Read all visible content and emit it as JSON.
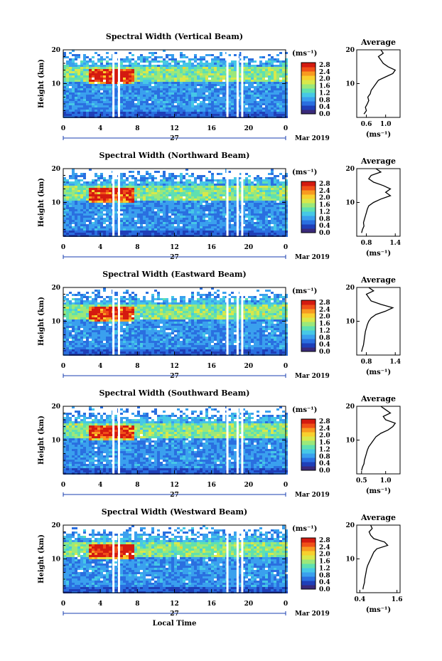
{
  "figure": {
    "xlabel": "Local Time",
    "date_left": "27",
    "date_right": "Mar 2019",
    "x_ticks": [
      "0",
      "4",
      "8",
      "12",
      "16",
      "20",
      "0"
    ],
    "y_label": "Height (km)",
    "y_ticks": [
      "20",
      "10"
    ],
    "unit_label": "(ms⁻¹)",
    "colorbar_ticks": [
      "2.8",
      "2.4",
      "2.0",
      "1.6",
      "1.2",
      "0.8",
      "0.4",
      "0.0"
    ],
    "avg_title": "Average",
    "avg_unit": "(ms⁻¹)"
  },
  "colors": {
    "palette": [
      "#3a2a7a",
      "#1f3fb8",
      "#2a6fe0",
      "#3aa0ee",
      "#46c8e6",
      "#5fe0b0",
      "#9be87a",
      "#d9e84a",
      "#f8d02e",
      "#f89a20",
      "#f05018",
      "#d41a10"
    ]
  },
  "chart_data": [
    {
      "type": "heatmap",
      "title": "Spectral Width (Vertical Beam)",
      "xlim": [
        0,
        24
      ],
      "ylim": [
        0,
        20
      ],
      "zlim": [
        0.0,
        3.0
      ],
      "gaps_hours": [
        5.3,
        5.9,
        17.6,
        18.7,
        19.2
      ],
      "profile": {
        "xticks": [
          "0.6",
          "1.0"
        ],
        "xlim": [
          0.4,
          1.3
        ],
        "heights": [
          1,
          2,
          3,
          4,
          5,
          6,
          7,
          8,
          9,
          10,
          11,
          12,
          13,
          14,
          15,
          16,
          17,
          18,
          19,
          20
        ],
        "values": [
          0.55,
          0.6,
          0.58,
          0.62,
          0.65,
          0.63,
          0.68,
          0.7,
          0.75,
          0.8,
          0.85,
          1.0,
          1.15,
          1.2,
          1.05,
          0.95,
          0.9,
          0.85,
          0.95,
          0.9
        ]
      }
    },
    {
      "type": "heatmap",
      "title": "Spectral Width (Northward Beam)",
      "xlim": [
        0,
        24
      ],
      "ylim": [
        0,
        20
      ],
      "zlim": [
        0.0,
        3.0
      ],
      "gaps_hours": [
        5.3,
        5.9,
        17.6,
        18.7,
        19.2
      ],
      "profile": {
        "xticks": [
          "0.8",
          "1.4"
        ],
        "xlim": [
          0.6,
          1.5
        ],
        "heights": [
          1,
          2,
          3,
          4,
          5,
          6,
          7,
          8,
          9,
          10,
          11,
          12,
          13,
          14,
          15,
          16,
          17,
          18,
          19,
          20
        ],
        "values": [
          0.7,
          0.72,
          0.75,
          0.74,
          0.76,
          0.78,
          0.8,
          0.82,
          0.85,
          0.95,
          1.1,
          1.3,
          1.2,
          1.3,
          1.15,
          0.95,
          0.85,
          0.9,
          1.1,
          1.0
        ]
      }
    },
    {
      "type": "heatmap",
      "title": "Spectral Width (Eastward Beam)",
      "xlim": [
        0,
        24
      ],
      "ylim": [
        0,
        20
      ],
      "zlim": [
        0.0,
        3.0
      ],
      "gaps_hours": [
        5.3,
        5.9,
        17.6,
        18.7,
        19.2
      ],
      "profile": {
        "xticks": [
          "0.8",
          "1.4"
        ],
        "xlim": [
          0.6,
          1.5
        ],
        "heights": [
          1,
          2,
          3,
          4,
          5,
          6,
          7,
          8,
          9,
          10,
          11,
          12,
          13,
          14,
          15,
          16,
          17,
          18,
          19,
          20
        ],
        "values": [
          0.7,
          0.72,
          0.74,
          0.75,
          0.76,
          0.77,
          0.78,
          0.8,
          0.82,
          0.85,
          0.9,
          1.0,
          1.2,
          1.35,
          1.1,
          0.9,
          0.85,
          0.8,
          0.95,
          0.85
        ]
      }
    },
    {
      "type": "heatmap",
      "title": "Spectral Width (Southward Beam)",
      "xlim": [
        0,
        24
      ],
      "ylim": [
        0,
        20
      ],
      "zlim": [
        0.0,
        3.0
      ],
      "gaps_hours": [
        5.3,
        5.9,
        17.6,
        18.7,
        19.2
      ],
      "profile": {
        "xticks": [
          "0.5",
          "1.0"
        ],
        "xlim": [
          0.4,
          1.3
        ],
        "heights": [
          1,
          2,
          3,
          4,
          5,
          6,
          7,
          8,
          9,
          10,
          11,
          12,
          13,
          14,
          15,
          16,
          17,
          18,
          19,
          20
        ],
        "values": [
          0.5,
          0.52,
          0.55,
          0.56,
          0.58,
          0.6,
          0.62,
          0.65,
          0.7,
          0.75,
          0.8,
          0.9,
          1.05,
          1.15,
          1.2,
          1.0,
          0.95,
          1.1,
          1.0,
          0.9
        ]
      }
    },
    {
      "type": "heatmap",
      "title": "Spectral Width (Westward Beam)",
      "xlim": [
        0,
        24
      ],
      "ylim": [
        0,
        20
      ],
      "zlim": [
        0.0,
        3.0
      ],
      "gaps_hours": [
        5.3,
        5.9,
        17.6,
        18.7,
        19.2
      ],
      "profile": {
        "xticks": [
          "0.4",
          "1.6"
        ],
        "xlim": [
          0.3,
          1.7
        ],
        "heights": [
          1,
          2,
          3,
          4,
          5,
          6,
          7,
          8,
          9,
          10,
          11,
          12,
          13,
          14,
          15,
          16,
          17,
          18,
          19,
          20
        ],
        "values": [
          0.5,
          0.52,
          0.55,
          0.56,
          0.58,
          0.6,
          0.62,
          0.65,
          0.7,
          0.75,
          0.8,
          0.85,
          0.95,
          1.3,
          1.2,
          0.85,
          0.75,
          0.7,
          0.8,
          0.75
        ]
      }
    }
  ]
}
